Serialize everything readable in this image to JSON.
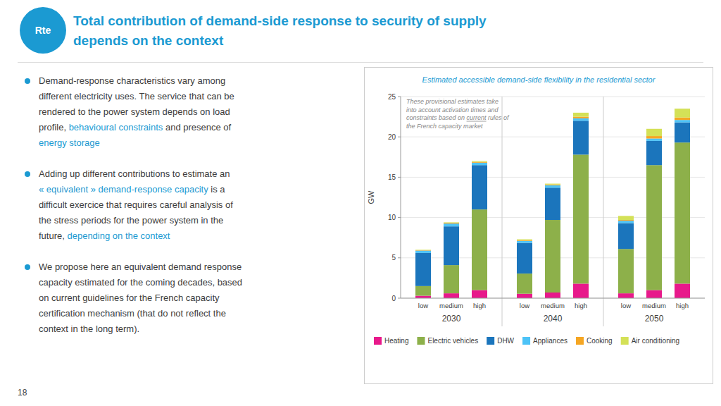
{
  "page": {
    "logo": "Rte",
    "title_lines": [
      "Total contribution of demand-side response to security of supply",
      "depends on the context"
    ],
    "bullets": [
      [
        {
          "text": "Demand-response characteristics vary among\ndifferent electricity uses. The service that can be\nrendered to the power system depends on load\nprofile, ",
          "highlight": false
        },
        {
          "text": "behavioural constraints",
          "highlight": true
        },
        {
          "text": " and presence of\n",
          "highlight": false
        },
        {
          "text": "energy storage",
          "highlight": true
        }
      ],
      [
        {
          "text": "Adding up different contributions to estimate an\n",
          "highlight": false
        },
        {
          "text": "« equivalent » demand-response capacity",
          "highlight": true
        },
        {
          "text": " is a\ndifficult exercice that requires careful analysis of\nthe stress periods for the power system in the\nfuture, ",
          "highlight": false
        },
        {
          "text": "depending on the context",
          "highlight": true
        }
      ],
      [
        {
          "text": "We propose here an equivalent demand response\ncapacity estimated for the coming decades, based\non current guidelines for the French capacity\ncertification mechanism (that do not reflect the\ncontext in the long term).",
          "highlight": false
        }
      ]
    ],
    "slide_number": "18",
    "colors": {
      "title": "#1b9ad2",
      "text": "#3d3d3d",
      "highlight": "#1b9ad2",
      "logo": "#1b9ad2",
      "chart_title": "#1b9ad2"
    }
  },
  "chart_data": {
    "type": "bar",
    "stacked": true,
    "title": "Estimated accessible demand-side flexibility in the residential sector",
    "ylabel": "GW",
    "ylim": [
      0,
      25
    ],
    "yticks": [
      0,
      5,
      10,
      15,
      20,
      25
    ],
    "grid": true,
    "legend": "bottom",
    "groups": [
      "2030",
      "2040",
      "2050"
    ],
    "categories": [
      "low",
      "medium",
      "high",
      "low",
      "medium",
      "high",
      "low",
      "medium",
      "high"
    ],
    "annotation": [
      [
        {
          "text": "These provisional estimates take",
          "underline": false
        }
      ],
      [
        {
          "text": "into account activation times and",
          "underline": false
        }
      ],
      [
        {
          "text": "constraints based on ",
          "underline": false
        },
        {
          "text": "current",
          "underline": true
        },
        {
          "text": " rules of",
          "underline": false
        }
      ],
      [
        {
          "text": "the French capacity market",
          "underline": false
        }
      ]
    ],
    "series": [
      {
        "name": "Heating",
        "color": "#e8198b",
        "values": [
          0.3,
          0.6,
          1.0,
          0.55,
          0.7,
          1.8,
          0.6,
          1.0,
          1.8
        ]
      },
      {
        "name": "Electric vehicles",
        "color": "#8db04a",
        "values": [
          1.2,
          3.5,
          10.0,
          2.5,
          9.0,
          16.0,
          5.5,
          15.5,
          17.5
        ]
      },
      {
        "name": "DHW",
        "color": "#1b75bc",
        "values": [
          4.1,
          4.8,
          5.5,
          3.8,
          4.0,
          4.2,
          3.2,
          3.0,
          2.5
        ]
      },
      {
        "name": "Appliances",
        "color": "#4dc3f7",
        "values": [
          0.3,
          0.35,
          0.3,
          0.25,
          0.3,
          0.3,
          0.3,
          0.3,
          0.3
        ]
      },
      {
        "name": "Cooking",
        "color": "#f5a623",
        "values": [
          0.05,
          0.1,
          0.1,
          0.1,
          0.1,
          0.2,
          0.1,
          0.3,
          0.3
        ]
      },
      {
        "name": "Air conditioning",
        "color": "#d4e157",
        "values": [
          0.05,
          0.05,
          0.1,
          0.1,
          0.1,
          0.5,
          0.5,
          0.9,
          1.1
        ]
      }
    ]
  }
}
